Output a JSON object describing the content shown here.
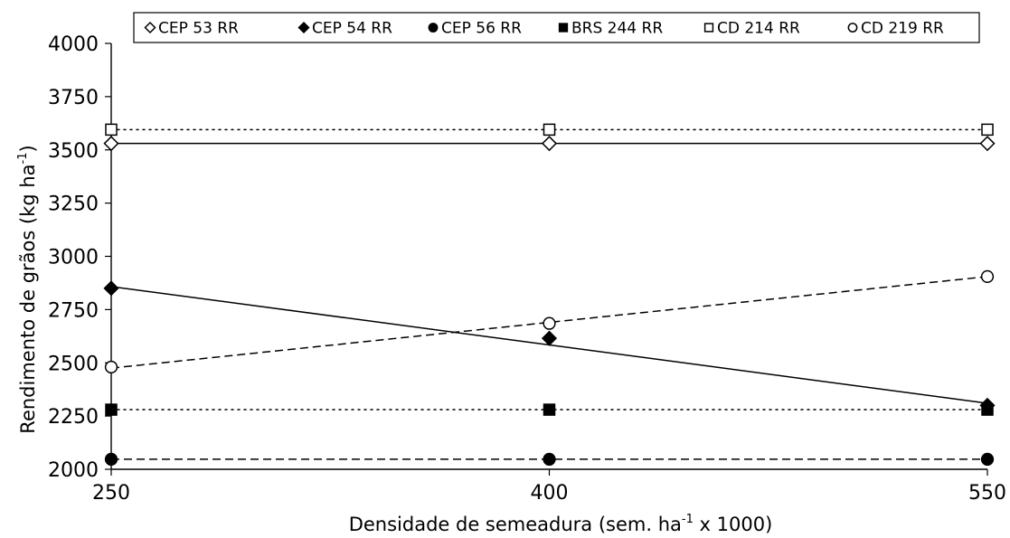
{
  "chart_data": {
    "type": "scatter",
    "xlabel": {
      "text": "Densidade de semeadura (sem. ha",
      "superscript": "-1",
      "suffix": " x 1000)"
    },
    "ylabel": {
      "text": "Rendimento de grãos (kg ha",
      "superscript": "-1",
      "suffix": ")"
    },
    "x_ticks": [
      250,
      400,
      550
    ],
    "y_ticks": [
      2000,
      2250,
      2500,
      2750,
      3000,
      3250,
      3500,
      3750,
      4000
    ],
    "xlim": [
      250,
      550
    ],
    "ylim": [
      2000,
      4000
    ],
    "grid": false,
    "legend_position": "top",
    "series": [
      {
        "name": "CEP 53 RR",
        "marker": "diamond-open",
        "x": [
          250,
          400,
          550
        ],
        "y": [
          3530,
          3530,
          3530
        ],
        "trendline": {
          "style": "solid",
          "x": [
            250,
            550
          ],
          "y": [
            3530,
            3530
          ]
        }
      },
      {
        "name": "CEP 54 RR",
        "marker": "diamond-filled",
        "x": [
          250,
          400,
          550
        ],
        "y": [
          2850,
          2615,
          2300
        ],
        "trendline": {
          "style": "solid",
          "x": [
            250,
            550
          ],
          "y": [
            2858,
            2310
          ]
        }
      },
      {
        "name": "CEP 56 RR",
        "marker": "circle-filled",
        "x": [
          250,
          400,
          550
        ],
        "y": [
          2047,
          2047,
          2047
        ],
        "trendline": {
          "style": "dashed",
          "x": [
            250,
            550
          ],
          "y": [
            2047,
            2047
          ]
        }
      },
      {
        "name": "BRS 244 RR",
        "marker": "square-filled",
        "x": [
          250,
          400,
          550
        ],
        "y": [
          2280,
          2280,
          2280
        ],
        "trendline": {
          "style": "dotted",
          "x": [
            250,
            550
          ],
          "y": [
            2280,
            2280
          ]
        }
      },
      {
        "name": "CD 214 RR",
        "marker": "square-open",
        "x": [
          250,
          400,
          550
        ],
        "y": [
          3595,
          3595,
          3595
        ],
        "trendline": {
          "style": "dotted",
          "x": [
            250,
            550
          ],
          "y": [
            3595,
            3595
          ]
        }
      },
      {
        "name": "CD 219 RR",
        "marker": "circle-open",
        "x": [
          250,
          400,
          550
        ],
        "y": [
          2480,
          2685,
          2905
        ],
        "trendline": {
          "style": "dashed",
          "x": [
            250,
            550
          ],
          "y": [
            2475,
            2905
          ]
        }
      }
    ],
    "colors": {
      "stroke": "#000000",
      "background": "#ffffff"
    }
  }
}
